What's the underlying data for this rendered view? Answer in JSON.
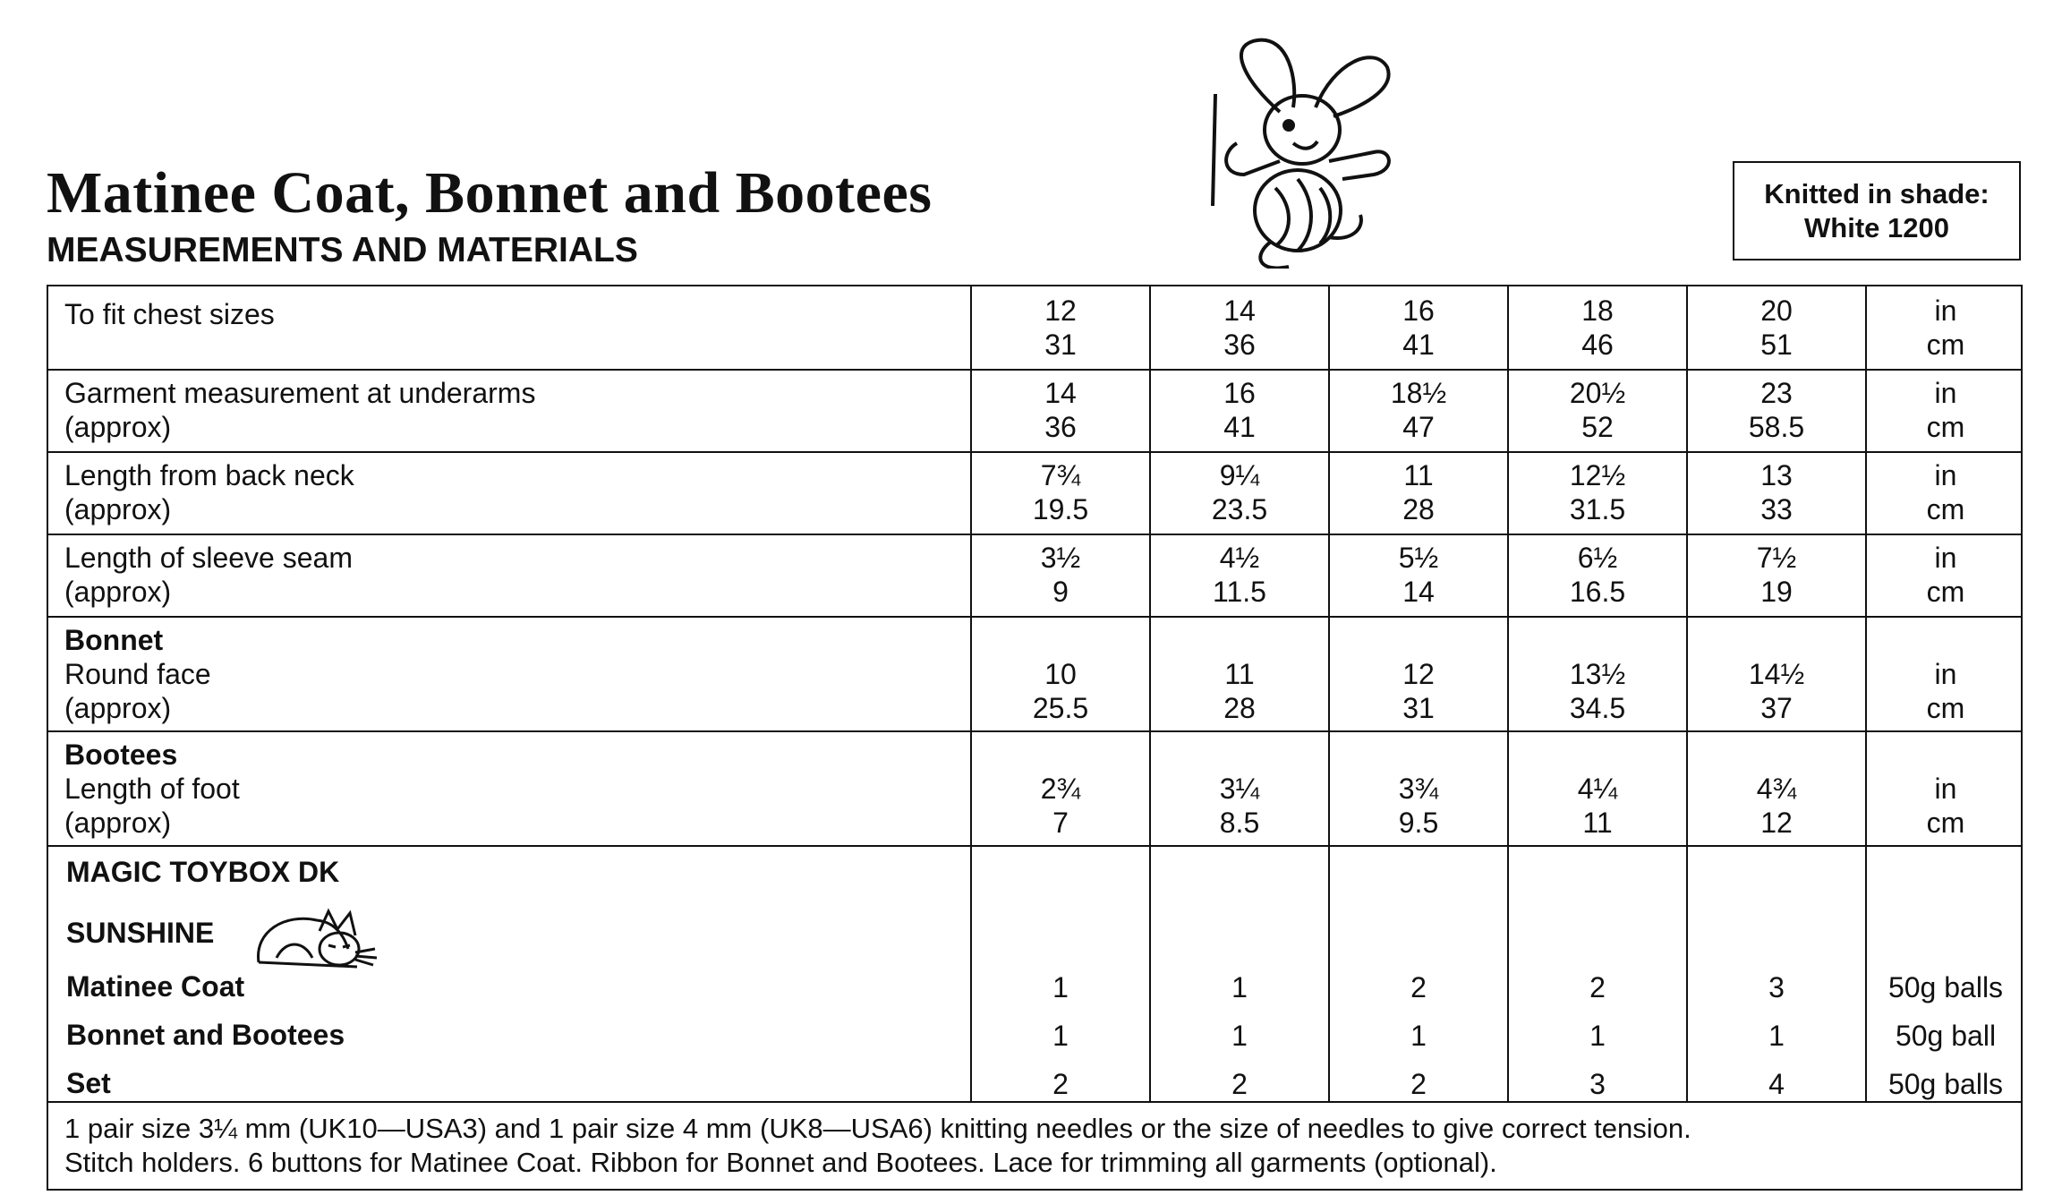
{
  "header": {
    "title": "Matinee Coat, Bonnet and Bootees",
    "subtitle": "MEASUREMENTS AND MATERIALS",
    "shade_line1": "Knitted in shade:",
    "shade_line2": "White 1200"
  },
  "table": {
    "rows": [
      {
        "label": [
          "To fit chest sizes"
        ],
        "in": [
          "12",
          "14",
          "16",
          "18",
          "20"
        ],
        "cm": [
          "31",
          "36",
          "41",
          "46",
          "51"
        ],
        "unit_in": "in",
        "unit_cm": "cm"
      },
      {
        "label": [
          "Garment measurement at underarms",
          "(approx)"
        ],
        "in": [
          "14",
          "16",
          "18½",
          "20½",
          "23"
        ],
        "cm": [
          "36",
          "41",
          "47",
          "52",
          "58.5"
        ],
        "unit_in": "in",
        "unit_cm": "cm"
      },
      {
        "label": [
          "Length from back neck",
          "(approx)"
        ],
        "in": [
          "7¾",
          "9¼",
          "11",
          "12½",
          "13"
        ],
        "cm": [
          "19.5",
          "23.5",
          "28",
          "31.5",
          "33"
        ],
        "unit_in": "in",
        "unit_cm": "cm"
      },
      {
        "label": [
          "Length of sleeve seam",
          "(approx)"
        ],
        "in": [
          "3½",
          "4½",
          "5½",
          "6½",
          "7½"
        ],
        "cm": [
          "9",
          "11.5",
          "14",
          "16.5",
          "19"
        ],
        "unit_in": "in",
        "unit_cm": "cm"
      },
      {
        "heading": "Bonnet",
        "label": [
          "Round face",
          "(approx)"
        ],
        "in": [
          "10",
          "11",
          "12",
          "13½",
          "14½"
        ],
        "cm": [
          "25.5",
          "28",
          "31",
          "34.5",
          "37"
        ],
        "unit_in": "in",
        "unit_cm": "cm"
      },
      {
        "heading": "Bootees",
        "label": [
          "Length of foot",
          "(approx)"
        ],
        "in": [
          "2¾",
          "3¼",
          "3¾",
          "4¼",
          "4¾"
        ],
        "cm": [
          "7",
          "8.5",
          "9.5",
          "11",
          "12"
        ],
        "unit_in": "in",
        "unit_cm": "cm"
      }
    ],
    "materials": {
      "brand": "MAGIC TOYBOX DK",
      "yarn": "SUNSHINE",
      "items": [
        {
          "name": "Matinee Coat",
          "values": [
            "1",
            "1",
            "2",
            "2",
            "3"
          ],
          "unit": "50g balls"
        },
        {
          "name": "Bonnet and Bootees",
          "values": [
            "1",
            "1",
            "1",
            "1",
            "1"
          ],
          "unit": "50g ball"
        },
        {
          "name": "Set",
          "values": [
            "2",
            "2",
            "2",
            "3",
            "4"
          ],
          "unit": "50g balls"
        }
      ]
    },
    "footer_line1": "1 pair size 3¼ mm (UK10—USA3) and 1 pair size 4 mm (UK8—USA6) knitting needles or the size of needles to give correct tension.",
    "footer_line2": "Stitch holders. 6 buttons for Matinee Coat. Ribbon for Bonnet and Bootees. Lace for trimming all garments (optional)."
  }
}
